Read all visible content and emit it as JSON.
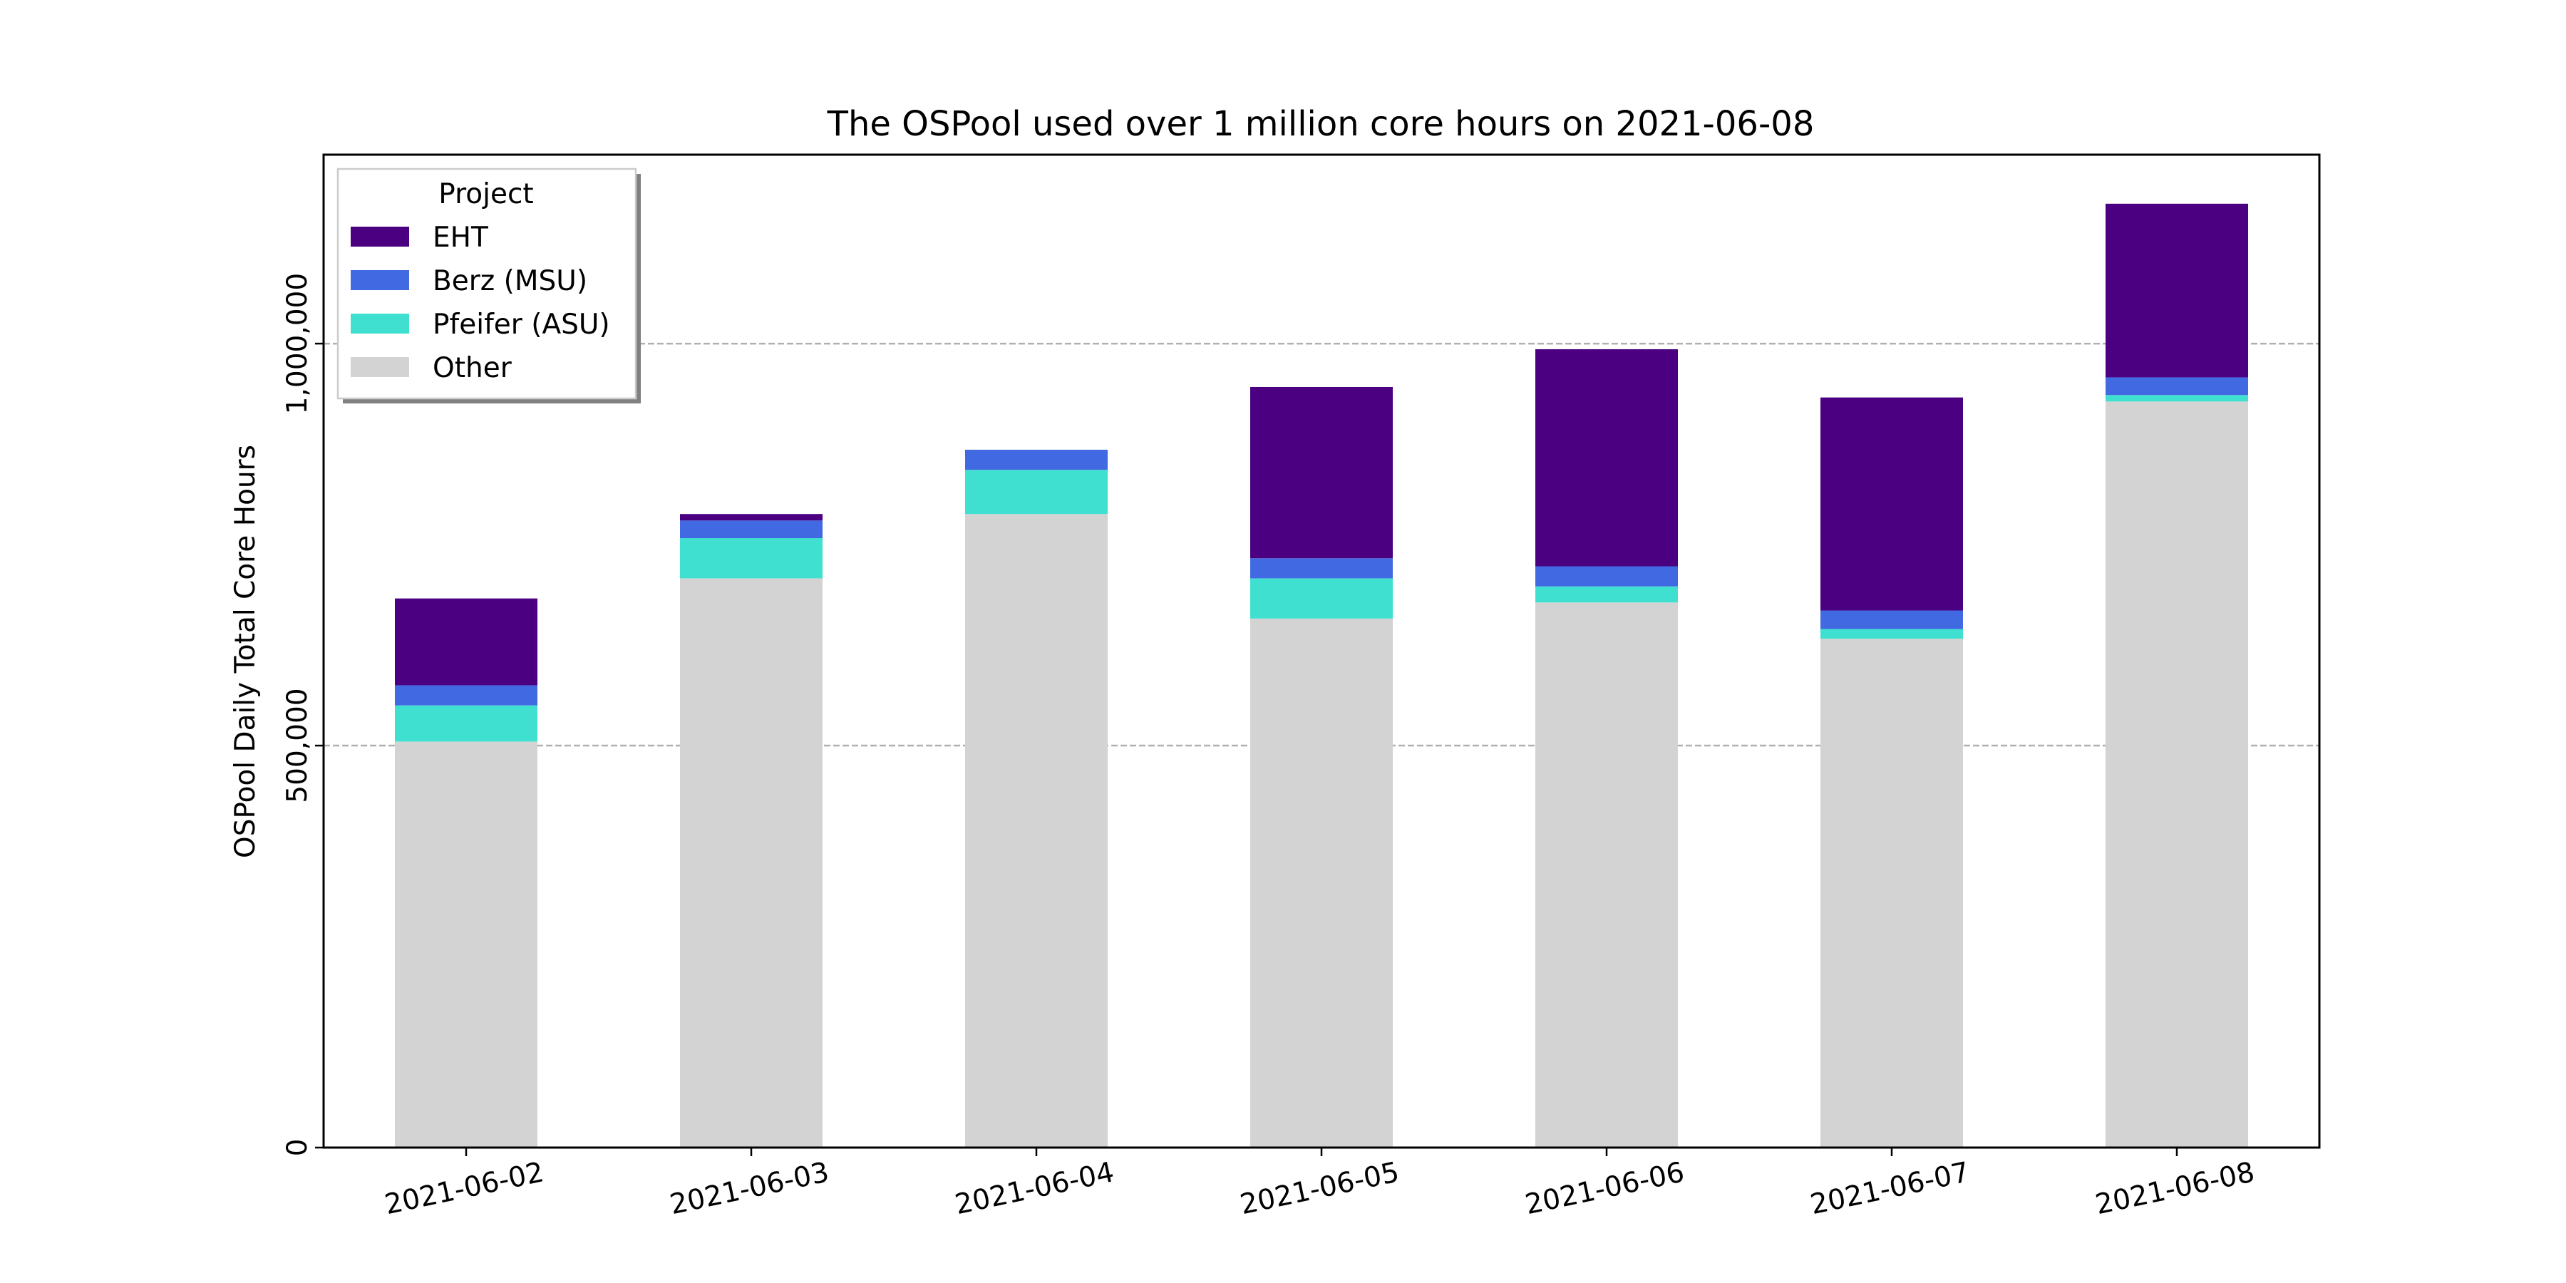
{
  "chart_data": {
    "type": "bar",
    "stacked": true,
    "title": "The OSPool used over 1 million core hours on 2021-06-08",
    "xlabel": "",
    "ylabel": "OSPool Daily Total Core Hours",
    "ylim": [
      0,
      1235000
    ],
    "yticks": [
      0,
      500000,
      1000000
    ],
    "ytick_labels": [
      "0",
      "500,000",
      "1,000,000"
    ],
    "grid": "horizontal dashed at y ticks",
    "legend": {
      "title": "Project",
      "placement": "top-left"
    },
    "categories": [
      "2021-06-02",
      "2021-06-03",
      "2021-06-04",
      "2021-06-05",
      "2021-06-06",
      "2021-06-07",
      "2021-06-08"
    ],
    "series": [
      {
        "name": "Other",
        "color": "#d3d3d3",
        "values": [
          505000,
          708000,
          788000,
          658000,
          678000,
          633000,
          928000
        ]
      },
      {
        "name": "Pfeifer (ASU)",
        "color": "#40e0d0",
        "values": [
          45000,
          50000,
          55000,
          50000,
          20000,
          12000,
          8000
        ]
      },
      {
        "name": "Berz (MSU)",
        "color": "#4169e1",
        "values": [
          25000,
          22000,
          25000,
          25000,
          25000,
          23000,
          22000
        ]
      },
      {
        "name": "EHT",
        "color": "#4b0082",
        "values": [
          108000,
          8000,
          0,
          213000,
          270000,
          265000,
          216000
        ]
      }
    ],
    "legend_order": [
      "EHT",
      "Berz (MSU)",
      "Pfeifer (ASU)",
      "Other"
    ]
  }
}
